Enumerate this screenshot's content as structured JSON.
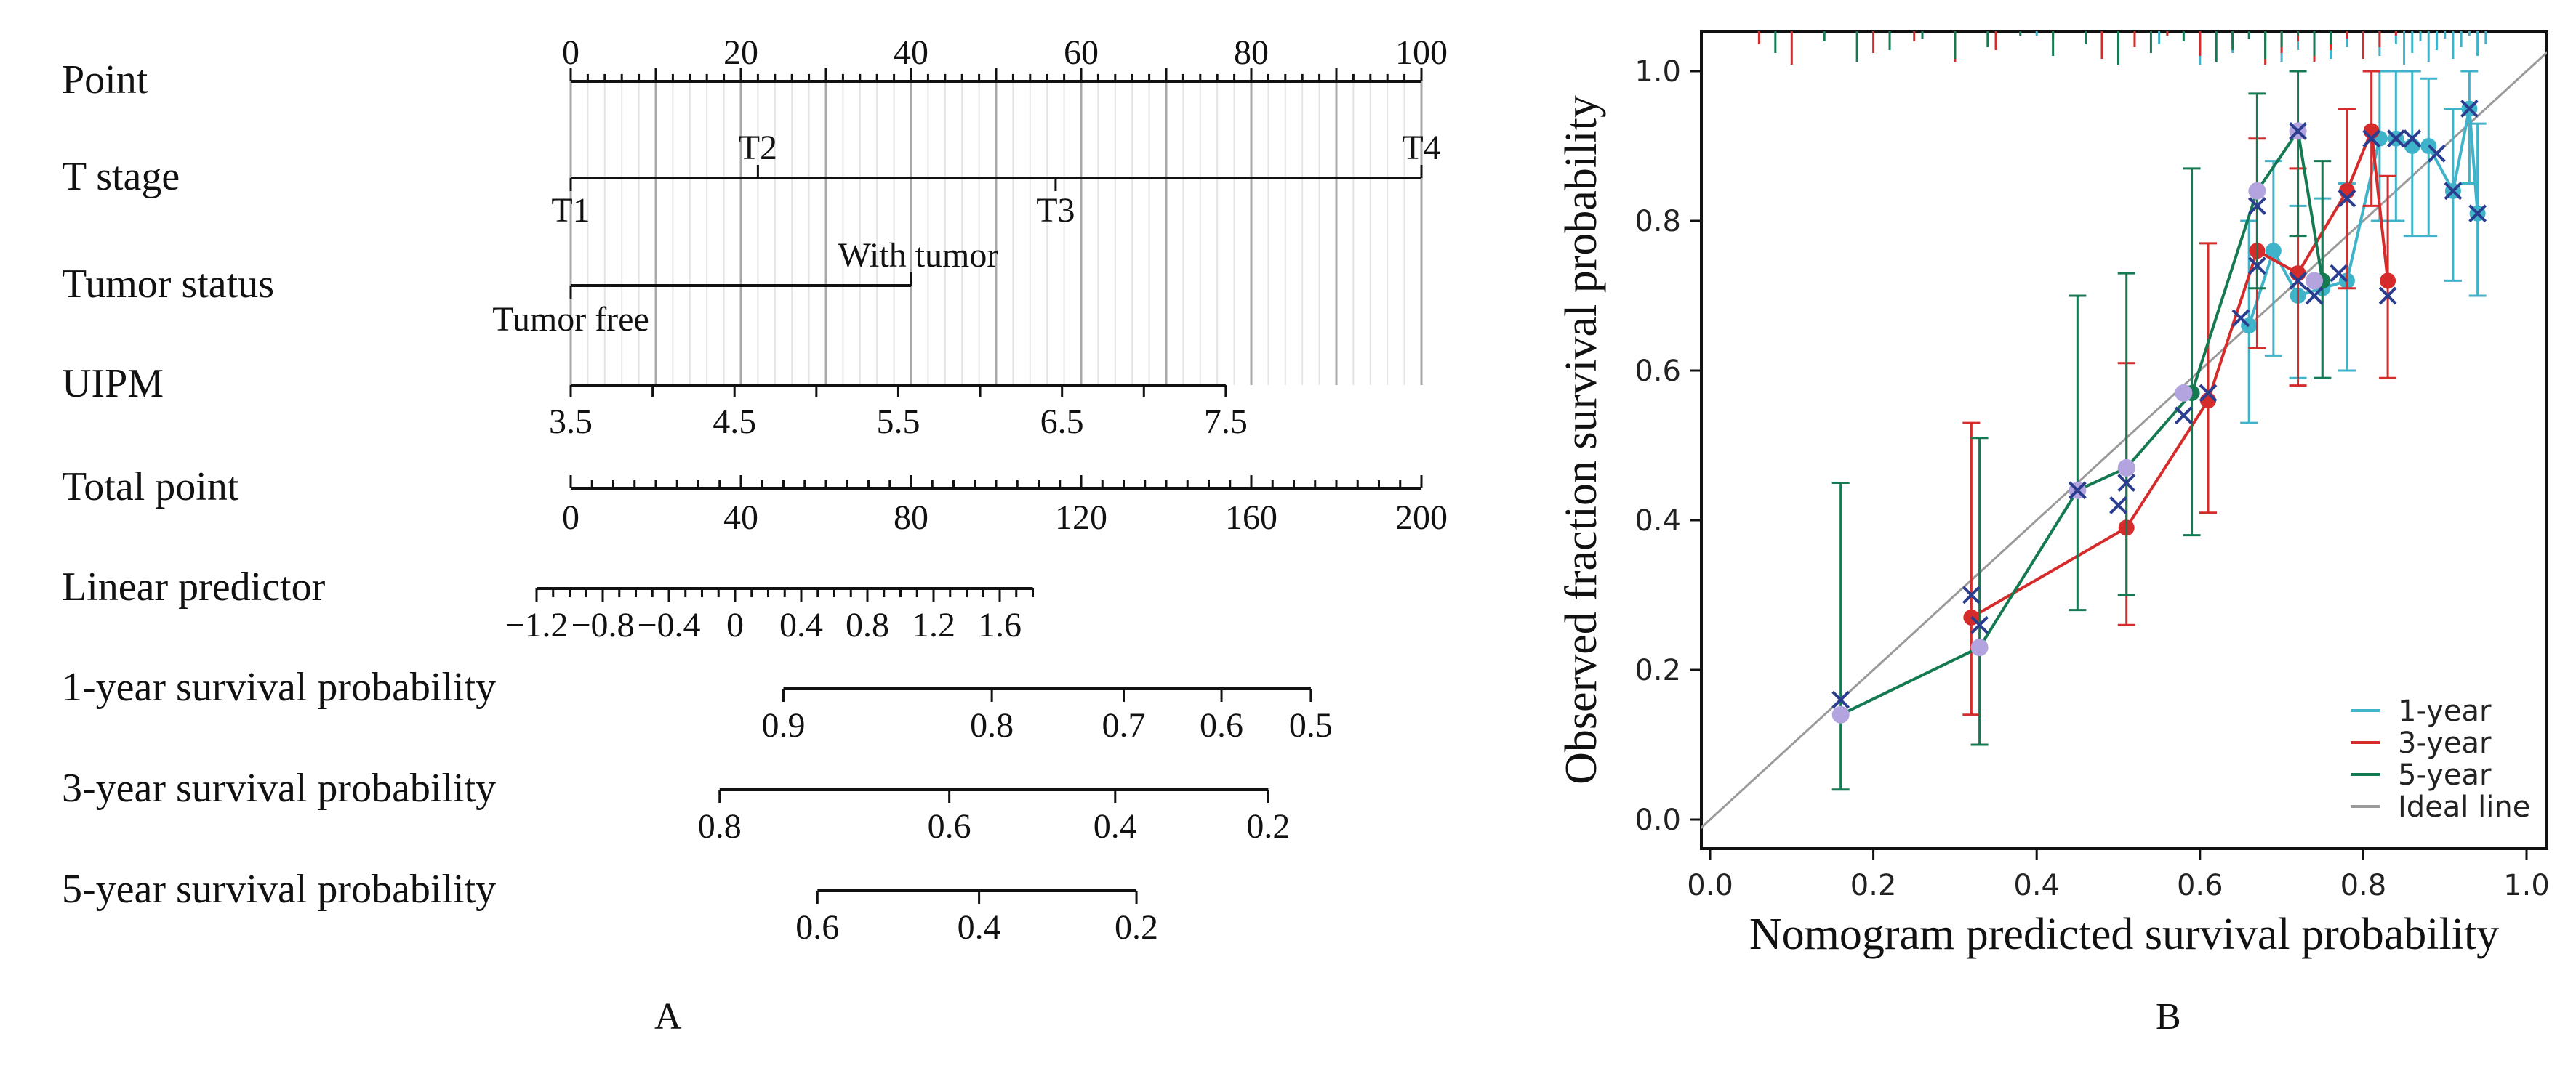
{
  "panels": {
    "a": "A",
    "b": "B"
  },
  "chart_data": [
    {
      "type": "nomogram",
      "rows": [
        {
          "label": "Point",
          "ticks": [
            "0",
            "20",
            "40",
            "60",
            "80",
            "100"
          ],
          "range": [
            0,
            100
          ]
        },
        {
          "label": "T stage",
          "levels": [
            {
              "name": "T1",
              "points": 0
            },
            {
              "name": "T2",
              "points": 22
            },
            {
              "name": "T3",
              "points": 57
            },
            {
              "name": "T4",
              "points": 100
            }
          ]
        },
        {
          "label": "Tumor status",
          "levels": [
            {
              "name": "Tumor free",
              "points": 0
            },
            {
              "name": "With tumor",
              "points": 40
            }
          ]
        },
        {
          "label": "UIPM",
          "range": [
            3.5,
            7.5
          ],
          "points_range": [
            0,
            77
          ],
          "ticks": [
            "3.5",
            "4.5",
            "5.5",
            "6.5",
            "7.5"
          ]
        },
        {
          "label": "Total point",
          "range": [
            0,
            200
          ],
          "ticks": [
            "0",
            "40",
            "80",
            "120",
            "160",
            "200"
          ]
        },
        {
          "label": "Linear predictor",
          "range": [
            -1.2,
            1.8
          ],
          "ticks": [
            "−1.2",
            "−0.8",
            "−0.4",
            "0",
            "0.4",
            "0.8",
            "1.2",
            "1.6"
          ]
        },
        {
          "label": "1-year survival probability",
          "ticks": [
            {
              "v": "0.9",
              "total": 50
            },
            {
              "v": "0.8",
              "total": 99
            },
            {
              "v": "0.7",
              "total": 130
            },
            {
              "v": "0.6",
              "total": 153
            },
            {
              "v": "0.5",
              "total": 174
            }
          ]
        },
        {
          "label": "3-year survival probability",
          "ticks": [
            {
              "v": "0.8",
              "total": 35
            },
            {
              "v": "0.6",
              "total": 89
            },
            {
              "v": "0.4",
              "total": 128
            },
            {
              "v": "0.2",
              "total": 164
            }
          ]
        },
        {
          "label": "5-year survival probability",
          "ticks": [
            {
              "v": "0.6",
              "total": 58
            },
            {
              "v": "0.4",
              "total": 96
            },
            {
              "v": "0.2",
              "total": 133
            }
          ]
        }
      ]
    },
    {
      "type": "line",
      "xlabel": "Nomogram predicted survival probability",
      "ylabel": "Observed fraction survival probability",
      "xlim": [
        0,
        1
      ],
      "ylim": [
        0,
        1
      ],
      "xticks": [
        "0.0",
        "0.2",
        "0.4",
        "0.6",
        "0.8",
        "1.0"
      ],
      "yticks": [
        "0.0",
        "0.2",
        "0.4",
        "0.6",
        "0.8",
        "1.0"
      ],
      "legend_position": "bottom-right",
      "series": [
        {
          "name": "1-year",
          "color": "#3fb3c9",
          "x": [
            0.66,
            0.69,
            0.72,
            0.75,
            0.78,
            0.82,
            0.84,
            0.86,
            0.88,
            0.91,
            0.93,
            0.94
          ],
          "y": [
            0.66,
            0.76,
            0.7,
            0.71,
            0.72,
            0.91,
            0.91,
            0.9,
            0.9,
            0.84,
            0.95,
            0.81
          ],
          "lower": [
            0.53,
            0.62,
            0.59,
            0.59,
            0.6,
            0.8,
            0.8,
            0.78,
            0.78,
            0.72,
            0.85,
            0.7
          ],
          "upper": [
            0.8,
            0.88,
            0.82,
            0.83,
            0.85,
            1.0,
            1.0,
            1.0,
            0.99,
            0.95,
            1.0,
            0.93
          ]
        },
        {
          "name": "3-year",
          "color": "#d62b2b",
          "x": [
            0.32,
            0.51,
            0.61,
            0.67,
            0.72,
            0.78,
            0.81,
            0.83
          ],
          "y": [
            0.27,
            0.39,
            0.56,
            0.76,
            0.73,
            0.84,
            0.92,
            0.72
          ],
          "lower": [
            0.14,
            0.26,
            0.41,
            0.63,
            0.58,
            0.71,
            0.82,
            0.59
          ],
          "upper": [
            0.53,
            0.61,
            0.77,
            0.91,
            0.87,
            0.95,
            1.0,
            0.86
          ]
        },
        {
          "name": "5-year",
          "color": "#157a52",
          "x": [
            0.16,
            0.33,
            0.45,
            0.51,
            0.59,
            0.67,
            0.72,
            0.75
          ],
          "y": [
            0.14,
            0.23,
            0.44,
            0.47,
            0.57,
            0.84,
            0.92,
            0.72
          ],
          "lower": [
            0.04,
            0.1,
            0.28,
            0.3,
            0.38,
            0.71,
            0.78,
            0.59
          ],
          "upper": [
            0.45,
            0.51,
            0.7,
            0.73,
            0.87,
            0.97,
            1.0,
            0.88
          ]
        },
        {
          "name": "Ideal line",
          "color": "#9a9a9a",
          "x": [
            0,
            1
          ],
          "y": [
            0,
            1
          ]
        }
      ],
      "markers": {
        "filled_color": "#b3a4e0",
        "cross_color": "#2b3d8f",
        "filled": [
          {
            "x": 0.16,
            "y": 0.14
          },
          {
            "x": 0.33,
            "y": 0.23
          },
          {
            "x": 0.45,
            "y": 0.44
          },
          {
            "x": 0.51,
            "y": 0.47
          },
          {
            "x": 0.58,
            "y": 0.57
          },
          {
            "x": 0.67,
            "y": 0.84
          },
          {
            "x": 0.72,
            "y": 0.92
          },
          {
            "x": 0.74,
            "y": 0.72
          }
        ],
        "crosses": [
          {
            "x": 0.16,
            "y": 0.16
          },
          {
            "x": 0.32,
            "y": 0.3
          },
          {
            "x": 0.33,
            "y": 0.26
          },
          {
            "x": 0.45,
            "y": 0.44
          },
          {
            "x": 0.5,
            "y": 0.42
          },
          {
            "x": 0.51,
            "y": 0.45
          },
          {
            "x": 0.58,
            "y": 0.54
          },
          {
            "x": 0.61,
            "y": 0.57
          },
          {
            "x": 0.65,
            "y": 0.67
          },
          {
            "x": 0.67,
            "y": 0.82
          },
          {
            "x": 0.67,
            "y": 0.74
          },
          {
            "x": 0.72,
            "y": 0.92
          },
          {
            "x": 0.72,
            "y": 0.72
          },
          {
            "x": 0.74,
            "y": 0.7
          },
          {
            "x": 0.77,
            "y": 0.73
          },
          {
            "x": 0.78,
            "y": 0.83
          },
          {
            "x": 0.81,
            "y": 0.91
          },
          {
            "x": 0.83,
            "y": 0.7
          },
          {
            "x": 0.84,
            "y": 0.91
          },
          {
            "x": 0.86,
            "y": 0.91
          },
          {
            "x": 0.89,
            "y": 0.89
          },
          {
            "x": 0.91,
            "y": 0.84
          },
          {
            "x": 0.93,
            "y": 0.95
          },
          {
            "x": 0.94,
            "y": 0.81
          }
        ]
      },
      "rug": {
        "1-year": [
          0.4,
          0.48,
          0.55,
          0.6,
          0.64,
          0.68,
          0.7,
          0.72,
          0.74,
          0.76,
          0.78,
          0.8,
          0.82,
          0.84,
          0.85,
          0.86,
          0.87,
          0.88,
          0.89,
          0.9,
          0.91,
          0.92,
          0.93,
          0.94,
          0.95
        ],
        "3-year": [
          0.06,
          0.1,
          0.2,
          0.25,
          0.3,
          0.35,
          0.42,
          0.48,
          0.52,
          0.56,
          0.6,
          0.64,
          0.68,
          0.7,
          0.72,
          0.74,
          0.76,
          0.78,
          0.8,
          0.82,
          0.84
        ],
        "5-year": [
          0.08,
          0.14,
          0.18,
          0.22,
          0.26,
          0.3,
          0.34,
          0.38,
          0.42,
          0.46,
          0.5,
          0.54,
          0.58,
          0.62,
          0.64,
          0.66,
          0.68,
          0.7,
          0.72,
          0.74,
          0.76
        ]
      }
    }
  ]
}
